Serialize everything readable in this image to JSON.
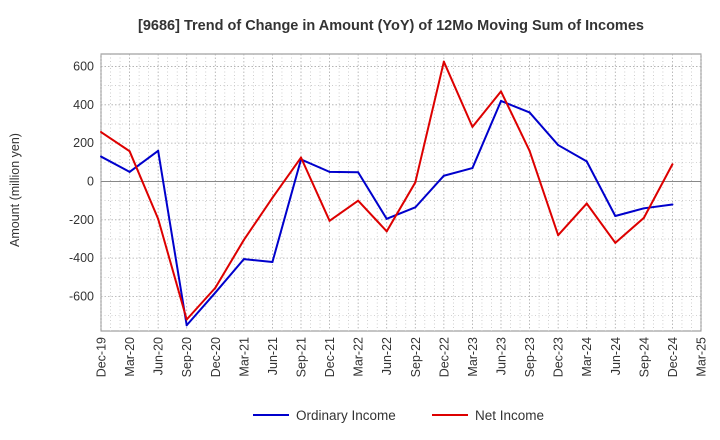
{
  "chart_data": {
    "type": "line",
    "title": "[9686]  Trend of Change in Amount (YoY) of 12Mo Moving Sum of Incomes",
    "xlabel": "",
    "ylabel": "Amount (million yen)",
    "categories": [
      "Dec-19",
      "Mar-20",
      "Jun-20",
      "Sep-20",
      "Dec-20",
      "Mar-21",
      "Jun-21",
      "Sep-21",
      "Dec-21",
      "Mar-22",
      "Jun-22",
      "Sep-22",
      "Dec-22",
      "Mar-23",
      "Jun-23",
      "Sep-23",
      "Dec-23",
      "Mar-24",
      "Jun-24",
      "Sep-24",
      "Dec-24",
      "Mar-25"
    ],
    "ylim": [
      -780,
      665
    ],
    "yticks": [
      600,
      400,
      200,
      0,
      -200,
      -400,
      -600
    ],
    "grid": true,
    "legend_position": "bottom",
    "series": [
      {
        "name": "Ordinary Income",
        "color": "#0000cc",
        "values": [
          130,
          50,
          160,
          -750,
          -580,
          -405,
          -420,
          115,
          50,
          48,
          -195,
          -135,
          30,
          70,
          420,
          360,
          190,
          105,
          -180,
          -140,
          -120,
          null
        ]
      },
      {
        "name": "Net Income",
        "color": "#dd0000",
        "values": [
          258,
          158,
          -195,
          -720,
          -555,
          -305,
          -85,
          125,
          -205,
          -100,
          -260,
          -5,
          625,
          285,
          470,
          160,
          -280,
          -115,
          -320,
          -190,
          90,
          null
        ]
      }
    ]
  }
}
